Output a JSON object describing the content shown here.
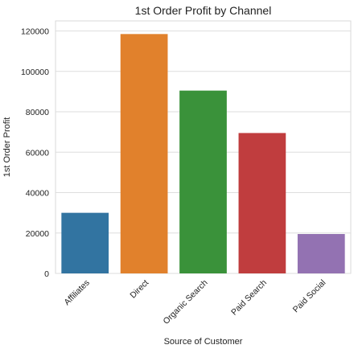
{
  "chart_data": {
    "type": "bar",
    "title": "1st Order Profit by Channel",
    "xlabel": "Source of Customer",
    "ylabel": "1st Order Profit",
    "categories": [
      "Affiliates",
      "Direct",
      "Organic Search",
      "Paid Search",
      "Paid Social"
    ],
    "values": [
      30000,
      118500,
      90500,
      69500,
      19500
    ],
    "colors": [
      "#3274a1",
      "#e1812c",
      "#3a923a",
      "#c03d3e",
      "#9372b2"
    ],
    "yticks": [
      0,
      20000,
      40000,
      60000,
      80000,
      100000,
      120000
    ],
    "ylim": [
      0,
      125000
    ],
    "grid": true,
    "legend": "none"
  }
}
